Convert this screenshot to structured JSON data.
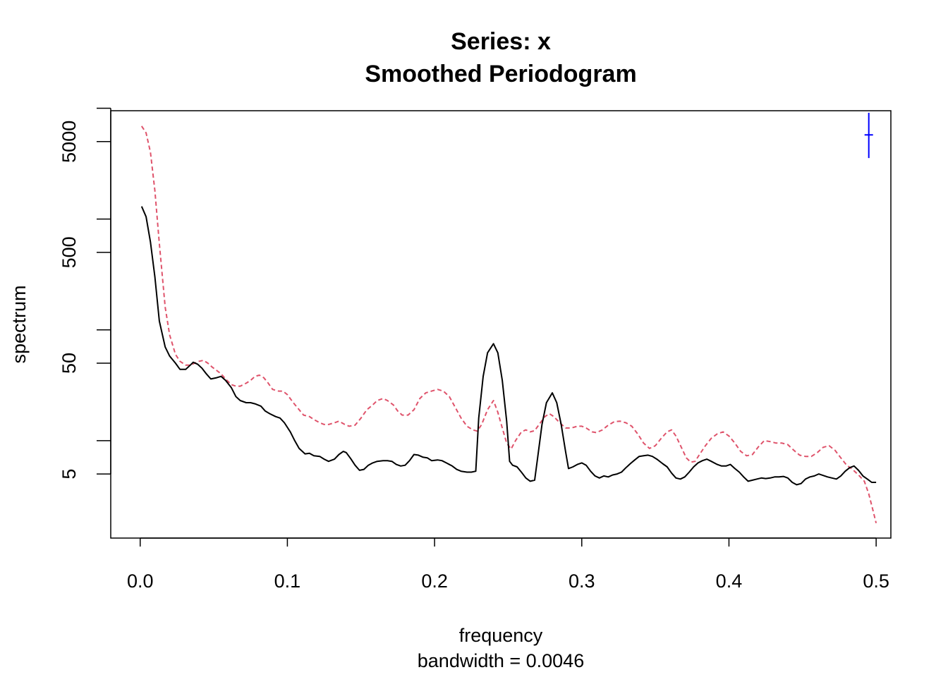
{
  "chart_data": {
    "type": "line",
    "title": "Series: x",
    "subtitle": "Smoothed Periodogram",
    "xlabel": "frequency",
    "xlabel_sub": "bandwidth = 0.0046",
    "ylabel": "spectrum",
    "y_scale": "log",
    "xlim": [
      -0.02,
      0.51
    ],
    "ylim": [
      1.32,
      9500
    ],
    "x_ticks": [
      0.0,
      0.1,
      0.2,
      0.3,
      0.4,
      0.5
    ],
    "x_tick_labels": [
      "0.0",
      "0.1",
      "0.2",
      "0.3",
      "0.4",
      "0.5"
    ],
    "y_ticks_major": [
      5,
      50,
      500,
      5000
    ],
    "y_tick_labels": [
      "5",
      "50",
      "500",
      "5000"
    ],
    "y_ticks_minor": [
      10,
      100,
      1000,
      10000
    ],
    "grid": false,
    "legend": "none",
    "series": [
      {
        "style": "solid",
        "color": "#000000",
        "points": [
          [
            0.001,
            1300
          ],
          [
            0.004,
            1050
          ],
          [
            0.007,
            620
          ],
          [
            0.01,
            300
          ],
          [
            0.013,
            120
          ],
          [
            0.017,
            70
          ],
          [
            0.02,
            58
          ],
          [
            0.024,
            50
          ],
          [
            0.027,
            44
          ],
          [
            0.031,
            44
          ],
          [
            0.034,
            48
          ],
          [
            0.036,
            51
          ],
          [
            0.039,
            49
          ],
          [
            0.042,
            45
          ],
          [
            0.045,
            40
          ],
          [
            0.048,
            36
          ],
          [
            0.052,
            37
          ],
          [
            0.055,
            38
          ],
          [
            0.058,
            35
          ],
          [
            0.062,
            30
          ],
          [
            0.065,
            25
          ],
          [
            0.068,
            23
          ],
          [
            0.072,
            22
          ],
          [
            0.075,
            22
          ],
          [
            0.078,
            21.5
          ],
          [
            0.082,
            20.5
          ],
          [
            0.085,
            18.5
          ],
          [
            0.088,
            17.5
          ],
          [
            0.092,
            16.5
          ],
          [
            0.095,
            16
          ],
          [
            0.098,
            14.5
          ],
          [
            0.102,
            12
          ],
          [
            0.105,
            10
          ],
          [
            0.108,
            8.5
          ],
          [
            0.112,
            7.6
          ],
          [
            0.115,
            7.7
          ],
          [
            0.118,
            7.3
          ],
          [
            0.122,
            7.2
          ],
          [
            0.125,
            6.8
          ],
          [
            0.128,
            6.5
          ],
          [
            0.132,
            6.8
          ],
          [
            0.135,
            7.5
          ],
          [
            0.138,
            8
          ],
          [
            0.14,
            7.8
          ],
          [
            0.143,
            6.9
          ],
          [
            0.146,
            6
          ],
          [
            0.149,
            5.4
          ],
          [
            0.152,
            5.5
          ],
          [
            0.155,
            6
          ],
          [
            0.158,
            6.3
          ],
          [
            0.161,
            6.5
          ],
          [
            0.165,
            6.6
          ],
          [
            0.168,
            6.6
          ],
          [
            0.171,
            6.5
          ],
          [
            0.174,
            6.1
          ],
          [
            0.177,
            5.9
          ],
          [
            0.18,
            6
          ],
          [
            0.183,
            6.6
          ],
          [
            0.186,
            7.5
          ],
          [
            0.189,
            7.4
          ],
          [
            0.192,
            7.1
          ],
          [
            0.195,
            7
          ],
          [
            0.198,
            6.6
          ],
          [
            0.202,
            6.7
          ],
          [
            0.205,
            6.6
          ],
          [
            0.208,
            6.3
          ],
          [
            0.212,
            5.9
          ],
          [
            0.215,
            5.5
          ],
          [
            0.218,
            5.3
          ],
          [
            0.222,
            5.2
          ],
          [
            0.225,
            5.2
          ],
          [
            0.228,
            5.3
          ],
          [
            0.23,
            16
          ],
          [
            0.233,
            38
          ],
          [
            0.236,
            62
          ],
          [
            0.24,
            75
          ],
          [
            0.243,
            62
          ],
          [
            0.246,
            35
          ],
          [
            0.249,
            15
          ],
          [
            0.251,
            6.5
          ],
          [
            0.253,
            6.0
          ],
          [
            0.256,
            5.8
          ],
          [
            0.259,
            5.2
          ],
          [
            0.262,
            4.6
          ],
          [
            0.265,
            4.3
          ],
          [
            0.268,
            4.4
          ],
          [
            0.27,
            7
          ],
          [
            0.273,
            14
          ],
          [
            0.276,
            22
          ],
          [
            0.28,
            27
          ],
          [
            0.283,
            22
          ],
          [
            0.286,
            14
          ],
          [
            0.289,
            8
          ],
          [
            0.291,
            5.6
          ],
          [
            0.294,
            5.8
          ],
          [
            0.297,
            6.1
          ],
          [
            0.3,
            6.3
          ],
          [
            0.303,
            6
          ],
          [
            0.306,
            5.3
          ],
          [
            0.309,
            4.8
          ],
          [
            0.312,
            4.6
          ],
          [
            0.315,
            4.8
          ],
          [
            0.318,
            4.7
          ],
          [
            0.321,
            4.9
          ],
          [
            0.324,
            5
          ],
          [
            0.327,
            5.2
          ],
          [
            0.33,
            5.7
          ],
          [
            0.333,
            6.2
          ],
          [
            0.336,
            6.7
          ],
          [
            0.339,
            7.2
          ],
          [
            0.342,
            7.3
          ],
          [
            0.345,
            7.4
          ],
          [
            0.348,
            7.2
          ],
          [
            0.351,
            6.8
          ],
          [
            0.355,
            6.2
          ],
          [
            0.358,
            5.8
          ],
          [
            0.361,
            5.1
          ],
          [
            0.364,
            4.6
          ],
          [
            0.367,
            4.5
          ],
          [
            0.37,
            4.7
          ],
          [
            0.373,
            5.2
          ],
          [
            0.376,
            5.8
          ],
          [
            0.379,
            6.3
          ],
          [
            0.382,
            6.6
          ],
          [
            0.385,
            6.8
          ],
          [
            0.388,
            6.5
          ],
          [
            0.392,
            6.1
          ],
          [
            0.395,
            5.9
          ],
          [
            0.398,
            5.9
          ],
          [
            0.401,
            6.1
          ],
          [
            0.404,
            5.6
          ],
          [
            0.407,
            5.2
          ],
          [
            0.41,
            4.7
          ],
          [
            0.413,
            4.3
          ],
          [
            0.416,
            4.4
          ],
          [
            0.419,
            4.5
          ],
          [
            0.422,
            4.6
          ],
          [
            0.425,
            4.55
          ],
          [
            0.428,
            4.6
          ],
          [
            0.431,
            4.7
          ],
          [
            0.434,
            4.7
          ],
          [
            0.437,
            4.75
          ],
          [
            0.44,
            4.6
          ],
          [
            0.443,
            4.2
          ],
          [
            0.446,
            4.0
          ],
          [
            0.449,
            4.1
          ],
          [
            0.452,
            4.5
          ],
          [
            0.455,
            4.7
          ],
          [
            0.458,
            4.8
          ],
          [
            0.461,
            5
          ],
          [
            0.464,
            4.85
          ],
          [
            0.467,
            4.7
          ],
          [
            0.47,
            4.6
          ],
          [
            0.473,
            4.5
          ],
          [
            0.476,
            4.8
          ],
          [
            0.479,
            5.3
          ],
          [
            0.482,
            5.7
          ],
          [
            0.485,
            5.9
          ],
          [
            0.488,
            5.4
          ],
          [
            0.491,
            4.8
          ],
          [
            0.494,
            4.5
          ],
          [
            0.497,
            4.2
          ],
          [
            0.5,
            4.2
          ]
        ]
      },
      {
        "style": "dashed",
        "color": "#df536b",
        "points": [
          [
            0.001,
            6900
          ],
          [
            0.004,
            6000
          ],
          [
            0.007,
            4000
          ],
          [
            0.01,
            1800
          ],
          [
            0.013,
            600
          ],
          [
            0.017,
            160
          ],
          [
            0.02,
            90
          ],
          [
            0.024,
            60
          ],
          [
            0.027,
            52
          ],
          [
            0.031,
            48
          ],
          [
            0.034,
            48
          ],
          [
            0.037,
            50
          ],
          [
            0.04,
            52
          ],
          [
            0.043,
            53
          ],
          [
            0.046,
            50
          ],
          [
            0.049,
            46
          ],
          [
            0.052,
            43
          ],
          [
            0.055,
            40
          ],
          [
            0.058,
            36
          ],
          [
            0.062,
            32
          ],
          [
            0.065,
            31
          ],
          [
            0.068,
            31
          ],
          [
            0.072,
            33
          ],
          [
            0.075,
            35
          ],
          [
            0.078,
            38
          ],
          [
            0.081,
            39
          ],
          [
            0.084,
            37
          ],
          [
            0.087,
            33
          ],
          [
            0.09,
            29
          ],
          [
            0.094,
            28
          ],
          [
            0.097,
            28
          ],
          [
            0.1,
            26
          ],
          [
            0.104,
            22
          ],
          [
            0.108,
            19
          ],
          [
            0.111,
            17
          ],
          [
            0.115,
            16.5
          ],
          [
            0.118,
            15.5
          ],
          [
            0.122,
            14.5
          ],
          [
            0.125,
            14
          ],
          [
            0.128,
            14
          ],
          [
            0.132,
            14.5
          ],
          [
            0.135,
            15
          ],
          [
            0.139,
            14
          ],
          [
            0.142,
            13.5
          ],
          [
            0.146,
            13.8
          ],
          [
            0.15,
            16
          ],
          [
            0.154,
            19
          ],
          [
            0.158,
            21
          ],
          [
            0.161,
            23
          ],
          [
            0.165,
            24
          ],
          [
            0.168,
            23
          ],
          [
            0.172,
            21
          ],
          [
            0.175,
            18.5
          ],
          [
            0.178,
            17
          ],
          [
            0.182,
            17
          ],
          [
            0.186,
            19
          ],
          [
            0.19,
            24
          ],
          [
            0.194,
            27
          ],
          [
            0.198,
            28
          ],
          [
            0.202,
            29
          ],
          [
            0.206,
            28
          ],
          [
            0.21,
            25
          ],
          [
            0.214,
            20
          ],
          [
            0.218,
            16
          ],
          [
            0.222,
            13.5
          ],
          [
            0.226,
            12.5
          ],
          [
            0.229,
            12.2
          ],
          [
            0.232,
            14
          ],
          [
            0.236,
            19
          ],
          [
            0.24,
            23
          ],
          [
            0.243,
            18
          ],
          [
            0.246,
            13
          ],
          [
            0.249,
            9.5
          ],
          [
            0.252,
            8.4
          ],
          [
            0.255,
            10
          ],
          [
            0.259,
            12
          ],
          [
            0.262,
            12.5
          ],
          [
            0.265,
            12
          ],
          [
            0.268,
            12.3
          ],
          [
            0.271,
            14
          ],
          [
            0.275,
            16.5
          ],
          [
            0.278,
            17.5
          ],
          [
            0.281,
            16.5
          ],
          [
            0.285,
            14.5
          ],
          [
            0.289,
            13
          ],
          [
            0.293,
            13
          ],
          [
            0.297,
            13.5
          ],
          [
            0.3,
            13.5
          ],
          [
            0.303,
            13
          ],
          [
            0.307,
            12
          ],
          [
            0.31,
            11.8
          ],
          [
            0.314,
            12.5
          ],
          [
            0.318,
            13.8
          ],
          [
            0.322,
            14.8
          ],
          [
            0.326,
            15
          ],
          [
            0.33,
            14.5
          ],
          [
            0.334,
            13.5
          ],
          [
            0.338,
            11.5
          ],
          [
            0.342,
            9.5
          ],
          [
            0.346,
            8.5
          ],
          [
            0.35,
            9
          ],
          [
            0.354,
            10.5
          ],
          [
            0.358,
            12
          ],
          [
            0.361,
            12.5
          ],
          [
            0.364,
            11
          ],
          [
            0.368,
            8.5
          ],
          [
            0.371,
            7
          ],
          [
            0.374,
            6.4
          ],
          [
            0.377,
            6.5
          ],
          [
            0.38,
            7.5
          ],
          [
            0.384,
            9
          ],
          [
            0.388,
            10.5
          ],
          [
            0.392,
            11.5
          ],
          [
            0.396,
            12
          ],
          [
            0.4,
            11
          ],
          [
            0.404,
            9.5
          ],
          [
            0.408,
            8
          ],
          [
            0.412,
            7.3
          ],
          [
            0.416,
            7.5
          ],
          [
            0.42,
            8.8
          ],
          [
            0.424,
            10
          ],
          [
            0.428,
            9.8
          ],
          [
            0.432,
            9.5
          ],
          [
            0.436,
            9.5
          ],
          [
            0.44,
            9.2
          ],
          [
            0.444,
            8.2
          ],
          [
            0.448,
            7.4
          ],
          [
            0.452,
            7.2
          ],
          [
            0.456,
            7.2
          ],
          [
            0.46,
            7.8
          ],
          [
            0.464,
            8.7
          ],
          [
            0.468,
            9
          ],
          [
            0.472,
            8.2
          ],
          [
            0.476,
            7
          ],
          [
            0.48,
            6
          ],
          [
            0.484,
            5.5
          ],
          [
            0.488,
            4.9
          ],
          [
            0.492,
            4.3
          ],
          [
            0.495,
            3.3
          ],
          [
            0.498,
            2.3
          ],
          [
            0.5,
            1.8
          ]
        ]
      }
    ],
    "ci_bar": {
      "color": "#0000ff",
      "x": 0.495,
      "center": 5750,
      "lower": 3550,
      "upper": 9100
    }
  }
}
